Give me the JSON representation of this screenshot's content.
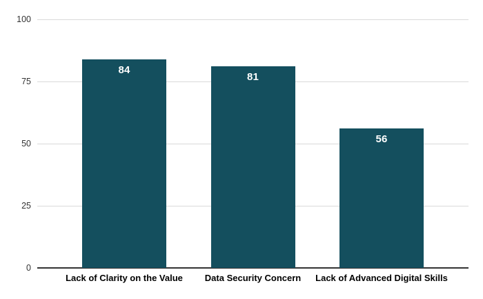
{
  "chart_data": {
    "type": "bar",
    "title": "",
    "xlabel": "",
    "ylabel": "",
    "categories": [
      "Lack of Clarity on the Value",
      "Data Security Concern",
      "Lack of Advanced Digital Skills"
    ],
    "values": [
      84,
      81,
      56
    ],
    "ylim": [
      0,
      100
    ],
    "yticks": [
      0,
      25,
      50,
      75,
      100
    ],
    "grid": true,
    "legend": "none",
    "colors": {
      "bar": "#144f5e",
      "value_label": "#ffffff",
      "gridline": "#d9d9d9",
      "axis_line": "#333333",
      "tick_label": "#333333",
      "category_label": "#000000",
      "background": "#ffffff"
    }
  }
}
